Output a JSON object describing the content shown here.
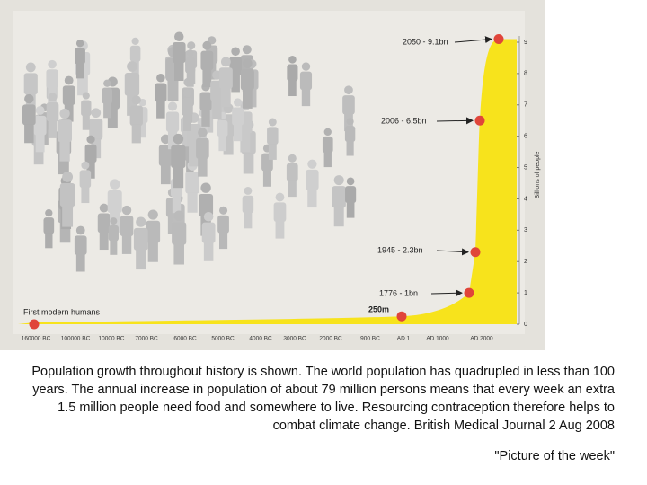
{
  "chart_data": {
    "type": "area",
    "y_axis_label": "Billions of people",
    "categories": [
      "160000 BC",
      "100000 BC",
      "10000 BC",
      "7000 BC",
      "6000 BC",
      "5000 BC",
      "4000 BC",
      "3000 BC",
      "2000 BC",
      "900 BC",
      "AD 1",
      "AD 1000",
      "AD 2000"
    ],
    "points": [
      {
        "label": "First modern humans",
        "value": 0
      },
      {
        "label": "250m",
        "value": 0.25
      },
      {
        "label": "1776 - 1bn",
        "value": 1
      },
      {
        "label": "1945 - 2.3bn",
        "value": 2.3
      },
      {
        "label": "2006 - 6.5bn",
        "value": 6.5
      },
      {
        "label": "2050 - 9.1bn",
        "value": 9.1
      }
    ],
    "color": "#f7e31c",
    "point_color": "#e0453a",
    "ylim": [
      0,
      9.3
    ],
    "yticks": [
      0,
      1,
      2,
      3,
      4,
      5,
      6,
      7,
      8,
      9
    ]
  },
  "caption": {
    "text": "Population growth throughout history is shown. The world population has quadrupled in less than 100 years. The annual increase in population of about 79 million persons means that every week an extra 1.5 million people need food and somewhere to live. Resourcing contraception therefore helps to combat climate change. British Medical Journal 2 Aug 2008",
    "note": "\"Picture of the week\""
  }
}
